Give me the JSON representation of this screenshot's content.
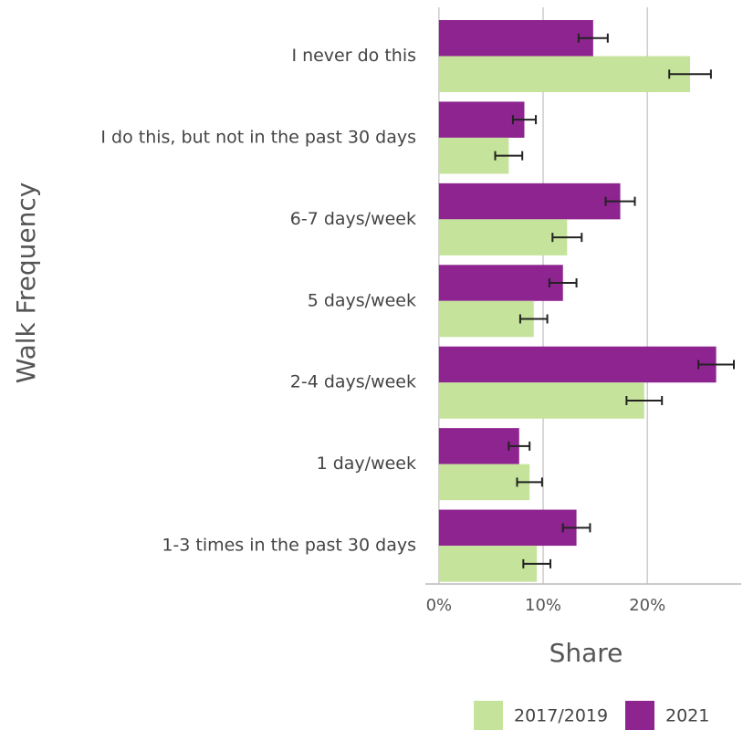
{
  "chart_data": {
    "type": "bar",
    "orientation": "horizontal",
    "x_label": "Share",
    "y_label": "Walk Frequency",
    "categories": [
      "I never do this",
      "I do this, but not in the past 30 days",
      "6-7 days/week",
      "5 days/week",
      "2-4 days/week",
      "1 day/week",
      "1-3 times in the past 30 days"
    ],
    "series": [
      {
        "name": "2017/2019",
        "color": "#c5e39a",
        "values": [
          24.1,
          6.7,
          12.3,
          9.1,
          19.7,
          8.7,
          9.4
        ],
        "errors": [
          2.0,
          1.3,
          1.4,
          1.3,
          1.7,
          1.2,
          1.3
        ]
      },
      {
        "name": "2021",
        "color": "#8e2490",
        "values": [
          14.8,
          8.2,
          17.4,
          11.9,
          26.6,
          7.7,
          13.2
        ],
        "errors": [
          1.4,
          1.1,
          1.4,
          1.3,
          1.7,
          1.0,
          1.3
        ]
      }
    ],
    "xlim": [
      -1.3,
      29
    ],
    "xticks": [
      {
        "value": 0,
        "label": "0%"
      },
      {
        "value": 10,
        "label": "10%"
      },
      {
        "value": 20,
        "label": "20%"
      }
    ],
    "grid": true,
    "legend": "bottom"
  }
}
